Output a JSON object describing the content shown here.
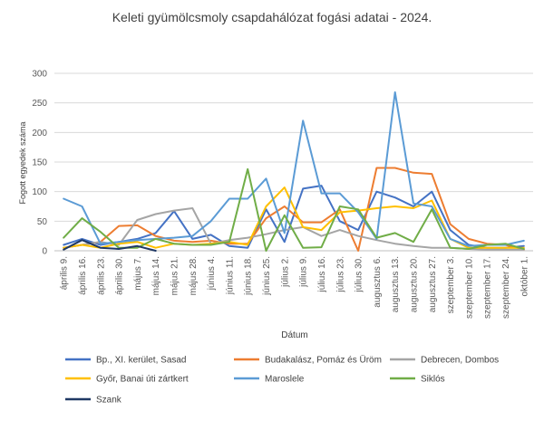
{
  "chart_data": {
    "type": "line",
    "title": "Keleti gyümölcsmoly csapdahálózat fogási adatai - 2024.",
    "xlabel": "Dátum",
    "ylabel": "Fogott egyedek száma",
    "ylim": [
      0,
      300
    ],
    "yticks": [
      0,
      50,
      100,
      150,
      200,
      250,
      300
    ],
    "grid": "horizontal",
    "legend_position": "bottom",
    "categories": [
      "április 9.",
      "április 16.",
      "április 23.",
      "április 30.",
      "május 7.",
      "május 14.",
      "május 21.",
      "május 28.",
      "június 4.",
      "június 11.",
      "június 18.",
      "június 25.",
      "július 2.",
      "július 9.",
      "július 16.",
      "július 23.",
      "július 30.",
      "augusztus 6.",
      "augusztus 13.",
      "augusztus 20.",
      "augusztus 27.",
      "szeptember 3.",
      "szeptember 10.",
      "szeptember 17.",
      "szeptember 24.",
      "október 1."
    ],
    "tick_labels": [
      "április 9.",
      "április 16.",
      "április 23.",
      "április 30.",
      "május 7.",
      "május 14.",
      "május 21.",
      "május 28.",
      "június 4.",
      "június 11.",
      "június 18.",
      "június 25.",
      "július 2.",
      "július 9.",
      "július 16.",
      "július 23.",
      "július 30.",
      "augusztus 6.",
      "augusztus 13.",
      "augusztus 20.",
      "augusztus 27.",
      "szeptember 3.",
      "szeptember 10.",
      "szeptember 17.",
      "szeptember 24.",
      "október 1."
    ],
    "x_positions": [
      0,
      1,
      2,
      3,
      4,
      5,
      6,
      7,
      8,
      9,
      10,
      11,
      12,
      13,
      14,
      15,
      16,
      17,
      18,
      19,
      20,
      21,
      22,
      23,
      24,
      25
    ],
    "series": [
      {
        "name": "Bp., XI. kerület, Sasad",
        "color": "#4472C4",
        "points": [
          [
            0,
            10
          ],
          [
            1,
            20
          ],
          [
            2,
            10
          ],
          [
            3,
            15
          ],
          [
            4,
            20
          ],
          [
            5,
            30
          ],
          [
            6,
            67
          ],
          [
            7,
            20
          ],
          [
            8,
            27
          ],
          [
            9,
            8
          ],
          [
            10,
            5
          ],
          [
            11,
            70
          ],
          [
            12,
            15
          ],
          [
            13,
            105
          ],
          [
            14,
            110
          ],
          [
            15,
            50
          ],
          [
            16,
            35
          ],
          [
            17,
            100
          ],
          [
            18,
            90
          ],
          [
            19,
            75
          ],
          [
            20,
            100
          ],
          [
            21,
            35
          ],
          [
            22,
            10
          ],
          [
            23,
            5
          ],
          [
            24,
            5
          ],
          [
            25,
            8
          ]
        ]
      },
      {
        "name": "Budakalász, Pomáz és Üröm",
        "color": "#ED7D31",
        "points": [
          [
            0,
            5
          ],
          [
            1,
            10
          ],
          [
            2,
            15
          ],
          [
            3,
            42
          ],
          [
            4,
            43
          ],
          [
            5,
            25
          ],
          [
            6,
            17
          ],
          [
            7,
            15
          ],
          [
            8,
            17
          ],
          [
            9,
            12
          ],
          [
            10,
            12
          ],
          [
            11,
            55
          ],
          [
            12,
            75
          ],
          [
            13,
            48
          ],
          [
            14,
            48
          ],
          [
            15,
            70
          ],
          [
            16,
            0
          ],
          [
            17,
            140
          ],
          [
            18,
            140
          ],
          [
            19,
            132
          ],
          [
            20,
            130
          ],
          [
            21,
            45
          ],
          [
            22,
            20
          ],
          [
            23,
            12
          ],
          [
            24,
            10
          ],
          [
            25,
            2
          ]
        ]
      },
      {
        "name": "Debrecen, Dombos",
        "color": "#A5A5A5",
        "points": [
          [
            0,
            5
          ],
          [
            1,
            10
          ],
          [
            2,
            15
          ],
          [
            3,
            10
          ],
          [
            4,
            52
          ],
          [
            5,
            62
          ],
          [
            6,
            68
          ],
          [
            7,
            72
          ],
          [
            8,
            12
          ],
          [
            9,
            18
          ],
          [
            10,
            22
          ],
          [
            11,
            28
          ],
          [
            12,
            35
          ],
          [
            13,
            40
          ],
          [
            14,
            25
          ],
          [
            15,
            35
          ],
          [
            16,
            25
          ],
          [
            17,
            18
          ],
          [
            18,
            12
          ],
          [
            19,
            8
          ],
          [
            20,
            5
          ],
          [
            21,
            5
          ],
          [
            22,
            3
          ],
          [
            23,
            2
          ],
          [
            24,
            2
          ],
          [
            25,
            2
          ]
        ]
      },
      {
        "name": "Győr, Banai úti zártkert",
        "color": "#FFC000",
        "points": [
          [
            0,
            5
          ],
          [
            1,
            10
          ],
          [
            2,
            5
          ],
          [
            3,
            12
          ],
          [
            4,
            15
          ],
          [
            5,
            5
          ],
          [
            6,
            12
          ],
          [
            7,
            10
          ],
          [
            8,
            12
          ],
          [
            9,
            15
          ],
          [
            10,
            10
          ],
          [
            11,
            75
          ],
          [
            12,
            107
          ],
          [
            13,
            40
          ],
          [
            14,
            35
          ],
          [
            15,
            65
          ],
          [
            16,
            68
          ],
          [
            17,
            72
          ],
          [
            18,
            75
          ],
          [
            19,
            72
          ],
          [
            20,
            85
          ],
          [
            21,
            20
          ],
          [
            22,
            5
          ],
          [
            23,
            5
          ],
          [
            24,
            5
          ],
          [
            25,
            5
          ]
        ]
      },
      {
        "name": "Maroslele",
        "color": "#5B9BD5",
        "points": [
          [
            0,
            88
          ],
          [
            1,
            75
          ],
          [
            2,
            12
          ],
          [
            3,
            15
          ],
          [
            4,
            18
          ],
          [
            5,
            20
          ],
          [
            6,
            22
          ],
          [
            7,
            25
          ],
          [
            8,
            50
          ],
          [
            9,
            88
          ],
          [
            10,
            88
          ],
          [
            11,
            122
          ],
          [
            12,
            30
          ],
          [
            13,
            220
          ],
          [
            14,
            97
          ],
          [
            15,
            97
          ],
          [
            16,
            65
          ],
          [
            17,
            20
          ],
          [
            18,
            268
          ],
          [
            19,
            80
          ],
          [
            20,
            75
          ],
          [
            21,
            20
          ],
          [
            22,
            8
          ],
          [
            23,
            10
          ],
          [
            24,
            10
          ],
          [
            25,
            17
          ]
        ]
      },
      {
        "name": "Siklós",
        "color": "#70AD47",
        "points": [
          [
            0,
            22
          ],
          [
            1,
            55
          ],
          [
            2,
            32
          ],
          [
            3,
            5
          ],
          [
            4,
            5
          ],
          [
            5,
            20
          ],
          [
            6,
            12
          ],
          [
            7,
            10
          ],
          [
            8,
            10
          ],
          [
            9,
            15
          ],
          [
            10,
            138
          ],
          [
            11,
            0
          ],
          [
            12,
            60
          ],
          [
            13,
            5
          ],
          [
            14,
            6
          ],
          [
            15,
            75
          ],
          [
            16,
            70
          ],
          [
            17,
            22
          ],
          [
            18,
            30
          ],
          [
            19,
            15
          ],
          [
            20,
            70
          ],
          [
            21,
            5
          ],
          [
            22,
            3
          ],
          [
            23,
            10
          ],
          [
            24,
            12
          ],
          [
            25,
            3
          ]
        ]
      },
      {
        "name": "Szank",
        "color": "#1F3864",
        "points": [
          [
            0,
            2
          ],
          [
            1,
            18
          ],
          [
            2,
            5
          ],
          [
            3,
            3
          ],
          [
            4,
            8
          ],
          [
            5,
            0
          ]
        ]
      }
    ]
  }
}
